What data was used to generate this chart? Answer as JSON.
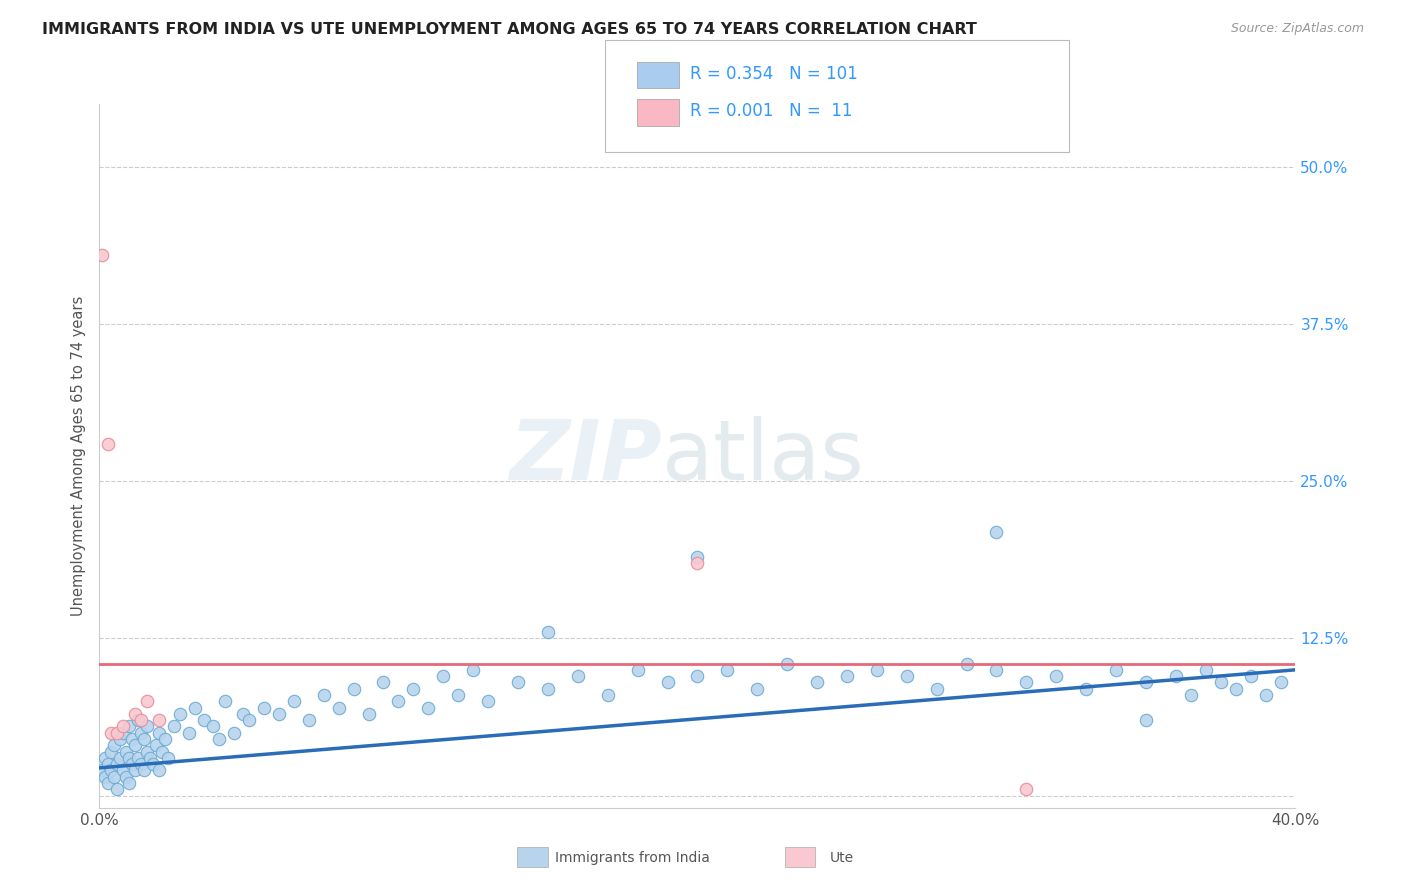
{
  "title": "IMMIGRANTS FROM INDIA VS UTE UNEMPLOYMENT AMONG AGES 65 TO 74 YEARS CORRELATION CHART",
  "source_text": "Source: ZipAtlas.com",
  "ylabel": "Unemployment Among Ages 65 to 74 years",
  "xlim": [
    0.0,
    0.4
  ],
  "ylim": [
    -0.01,
    0.55
  ],
  "x_ticks": [
    0.0,
    0.1,
    0.2,
    0.3,
    0.4
  ],
  "x_tick_labels": [
    "0.0%",
    "",
    "",
    "",
    "40.0%"
  ],
  "y_tick_labels": [
    "",
    "12.5%",
    "25.0%",
    "37.5%",
    "50.0%"
  ],
  "y_ticks": [
    0.0,
    0.125,
    0.25,
    0.375,
    0.5
  ],
  "blue_line_color": "#2b6cb8",
  "pink_line_color": "#e8697a",
  "scatter_blue_fill": "#b8d4ed",
  "scatter_blue_edge": "#6aaad4",
  "scatter_pink_fill": "#f9c8d0",
  "scatter_pink_edge": "#e8909a",
  "legend_R_color": "#3399ff",
  "legend_box_color": "#aaccee",
  "legend_pink_box_color": "#f9b8c4",
  "india_R": "0.354",
  "india_N": "101",
  "ute_R": "0.001",
  "ute_N": " 11",
  "india_x": [
    0.001,
    0.002,
    0.002,
    0.003,
    0.003,
    0.004,
    0.004,
    0.005,
    0.005,
    0.006,
    0.006,
    0.007,
    0.007,
    0.008,
    0.008,
    0.009,
    0.009,
    0.01,
    0.01,
    0.01,
    0.011,
    0.011,
    0.012,
    0.012,
    0.013,
    0.013,
    0.014,
    0.014,
    0.015,
    0.015,
    0.016,
    0.016,
    0.017,
    0.018,
    0.019,
    0.02,
    0.02,
    0.021,
    0.022,
    0.023,
    0.025,
    0.027,
    0.03,
    0.032,
    0.035,
    0.038,
    0.04,
    0.042,
    0.045,
    0.048,
    0.05,
    0.055,
    0.06,
    0.065,
    0.07,
    0.075,
    0.08,
    0.085,
    0.09,
    0.095,
    0.1,
    0.105,
    0.11,
    0.115,
    0.12,
    0.125,
    0.13,
    0.14,
    0.15,
    0.16,
    0.17,
    0.18,
    0.19,
    0.2,
    0.21,
    0.22,
    0.23,
    0.24,
    0.25,
    0.26,
    0.27,
    0.28,
    0.29,
    0.3,
    0.31,
    0.32,
    0.33,
    0.34,
    0.35,
    0.36,
    0.365,
    0.37,
    0.375,
    0.38,
    0.385,
    0.39,
    0.395,
    0.2,
    0.3,
    0.35,
    0.15
  ],
  "india_y": [
    0.02,
    0.015,
    0.03,
    0.01,
    0.025,
    0.02,
    0.035,
    0.015,
    0.04,
    0.025,
    0.005,
    0.03,
    0.045,
    0.02,
    0.05,
    0.015,
    0.035,
    0.01,
    0.03,
    0.055,
    0.025,
    0.045,
    0.02,
    0.04,
    0.03,
    0.06,
    0.025,
    0.05,
    0.02,
    0.045,
    0.035,
    0.055,
    0.03,
    0.025,
    0.04,
    0.02,
    0.05,
    0.035,
    0.045,
    0.03,
    0.055,
    0.065,
    0.05,
    0.07,
    0.06,
    0.055,
    0.045,
    0.075,
    0.05,
    0.065,
    0.06,
    0.07,
    0.065,
    0.075,
    0.06,
    0.08,
    0.07,
    0.085,
    0.065,
    0.09,
    0.075,
    0.085,
    0.07,
    0.095,
    0.08,
    0.1,
    0.075,
    0.09,
    0.085,
    0.095,
    0.08,
    0.1,
    0.09,
    0.095,
    0.1,
    0.085,
    0.105,
    0.09,
    0.095,
    0.1,
    0.095,
    0.085,
    0.105,
    0.1,
    0.09,
    0.095,
    0.085,
    0.1,
    0.09,
    0.095,
    0.08,
    0.1,
    0.09,
    0.085,
    0.095,
    0.08,
    0.09,
    0.19,
    0.21,
    0.06,
    0.13
  ],
  "ute_x": [
    0.001,
    0.003,
    0.004,
    0.006,
    0.008,
    0.012,
    0.014,
    0.016,
    0.02,
    0.2,
    0.31
  ],
  "ute_y": [
    0.43,
    0.28,
    0.05,
    0.05,
    0.055,
    0.065,
    0.06,
    0.075,
    0.06,
    0.185,
    0.005
  ],
  "ute_line_y_intercept": 0.105,
  "ute_line_slope": 0.0,
  "india_line_x_start": 0.0,
  "india_line_y_start": 0.022,
  "india_line_x_end": 0.4,
  "india_line_y_end": 0.1
}
